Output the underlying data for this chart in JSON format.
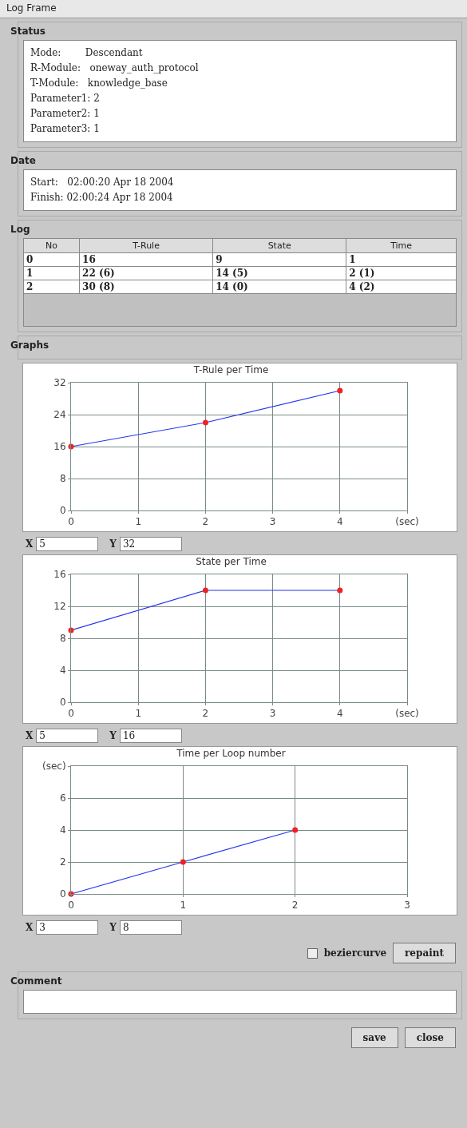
{
  "chart_data": [
    {
      "type": "other",
      "title": "Log Frame"
    },
    {
      "type": "other",
      "title": "Status",
      "annotations": [
        "Mode:        Descendant",
        "R-Module:   oneway_auth_protocol",
        "T-Module:   knowledge_base",
        "Parameter1: 2",
        "Parameter2: 1",
        "Parameter3: 1"
      ]
    },
    {
      "type": "other",
      "title": "Date",
      "annotations": [
        "Start:   02:00:20 Apr 18 2004",
        "Finish: 02:00:24 Apr 18 2004"
      ]
    },
    {
      "type": "other",
      "title": "Log",
      "categories": [
        "No",
        "T-Rule",
        "State",
        "Time"
      ],
      "annotations": [
        "0",
        "16",
        "9",
        "1",
        "1",
        "22 (6)",
        "14 (5)",
        "2 (1)",
        "2",
        "30 (8)",
        "14 (0)",
        "4 (2)"
      ]
    },
    {
      "type": "other",
      "title": "Graphs"
    },
    {
      "type": "line",
      "title": "T-Rule per Time",
      "x": [
        0,
        2,
        4
      ],
      "series": [
        {
          "color": "#2233ee",
          "values": [
            16,
            22,
            30
          ]
        }
      ],
      "xlim": [
        0,
        5
      ],
      "xticks": [
        0,
        1,
        2,
        3,
        4,
        {
          "value": 5,
          "label": "(sec)"
        }
      ],
      "ylim": [
        0,
        32
      ],
      "yticks": [
        0,
        8,
        16,
        24,
        32
      ],
      "grid": true,
      "marker": "circle",
      "line_style": "solid",
      "legend": false,
      "annotations": [
        "X",
        "5",
        "Y",
        "32"
      ]
    },
    {
      "type": "line",
      "title": "State per Time",
      "x": [
        0,
        2,
        4
      ],
      "series": [
        {
          "color": "#2233ee",
          "values": [
            9,
            14,
            14
          ]
        }
      ],
      "xlim": [
        0,
        5
      ],
      "xticks": [
        0,
        1,
        2,
        3,
        4,
        {
          "value": 5,
          "label": "(sec)"
        }
      ],
      "ylim": [
        0,
        16
      ],
      "yticks": [
        0,
        4,
        8,
        12,
        16
      ],
      "grid": true,
      "marker": "circle",
      "line_style": "solid",
      "legend": false,
      "annotations": [
        "X",
        "5",
        "Y",
        "16"
      ]
    },
    {
      "type": "line",
      "title": "Time per Loop number",
      "x": [
        0,
        1,
        2
      ],
      "series": [
        {
          "color": "#2233ee",
          "values": [
            0,
            2,
            4
          ]
        }
      ],
      "xlim": [
        0,
        3
      ],
      "xticks": [
        0,
        1,
        2,
        3
      ],
      "ylim": [
        0,
        8
      ],
      "yticks": [
        0,
        2,
        4,
        6,
        {
          "value": 8,
          "label": "(sec)"
        }
      ],
      "grid": true,
      "marker": "circle",
      "line_style": "solid",
      "legend": false,
      "annotations": [
        "X",
        "3",
        "Y",
        "8"
      ]
    },
    {
      "type": "other",
      "annotations": [
        "beziercurve",
        "repaint"
      ]
    },
    {
      "type": "other",
      "title": "Comment"
    },
    {
      "type": "other",
      "annotations": [
        "save",
        "close"
      ]
    }
  ]
}
